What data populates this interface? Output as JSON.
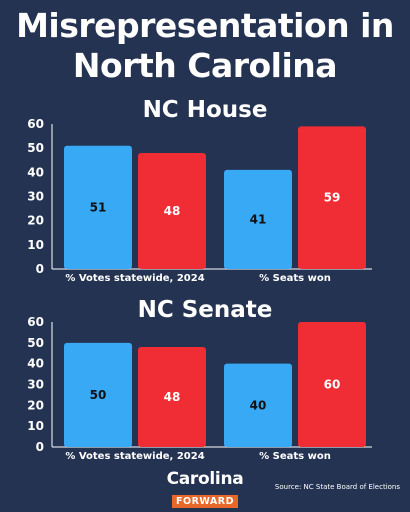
{
  "main_title": "Misrepresentation in North Carolina",
  "footer": {
    "logo_top": "Carolina",
    "logo_bottom": "FORWARD",
    "source": "Source: NC State Board of Elections"
  },
  "colors": {
    "background": "#243352",
    "votes_blue": "#37a9f5",
    "seats_red": "#f02d34"
  },
  "chart_data": [
    {
      "type": "bar",
      "title": "NC House",
      "categories": [
        "% Votes statewide, 2024",
        "% Seats won"
      ],
      "series": [
        {
          "values": [
            51,
            41
          ],
          "color": "#37a9f5",
          "label_color": "#111111"
        },
        {
          "values": [
            48,
            59
          ],
          "color": "#f02d34",
          "label_color": "#ffffff"
        }
      ],
      "ylim": [
        0,
        60
      ],
      "yticks": [
        0,
        10,
        20,
        30,
        40,
        50,
        60
      ],
      "grid": false,
      "legend": "none"
    },
    {
      "type": "bar",
      "title": "NC Senate",
      "categories": [
        "% Votes statewide, 2024",
        "% Seats won"
      ],
      "series": [
        {
          "values": [
            50,
            40
          ],
          "color": "#37a9f5",
          "label_color": "#111111"
        },
        {
          "values": [
            48,
            60
          ],
          "color": "#f02d34",
          "label_color": "#ffffff"
        }
      ],
      "ylim": [
        0,
        60
      ],
      "yticks": [
        0,
        10,
        20,
        30,
        40,
        50,
        60
      ],
      "grid": false,
      "legend": "none"
    }
  ]
}
